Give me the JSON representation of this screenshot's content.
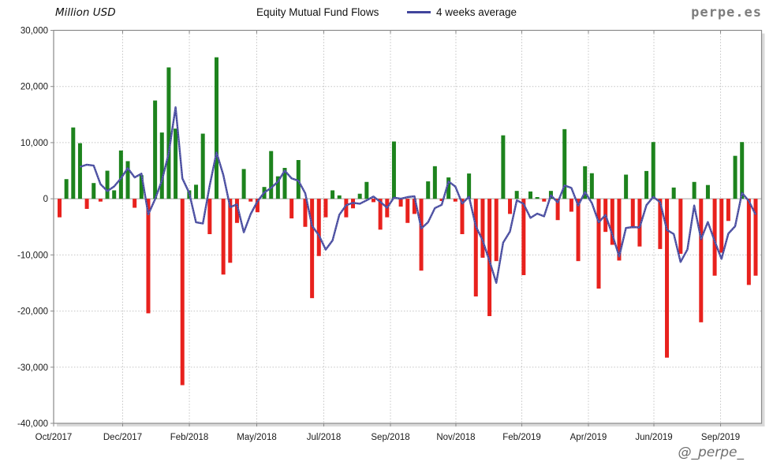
{
  "header": {
    "y_axis_unit": "Million USD",
    "title": "Equity Mutual Fund Flows",
    "legend_label": "4 weeks average",
    "brand_watermark": "perpe.es"
  },
  "footer": {
    "handle_watermark": "@_perpe_"
  },
  "colors": {
    "positive_bar": "#1d831d",
    "negative_bar": "#e8211d",
    "average_line": "#41459c",
    "grid": "#c4c4c4",
    "frame": "#8a8a8a",
    "zero_line": "#a0a0a0",
    "tick_text": "#1a1a1a",
    "watermark": "#7d7d7d"
  },
  "chart_data": {
    "type": "bar",
    "title": "Equity Mutual Fund Flows",
    "unit": "Million USD",
    "frequency": "weekly",
    "grid": true,
    "legend_position": "top",
    "ylim": [
      -40000,
      30000
    ],
    "y_tick_values": [
      30000,
      20000,
      10000,
      0,
      -10000,
      -20000,
      -30000,
      -40000
    ],
    "y_tick_labels": [
      "30,000",
      "20,000",
      "10,000",
      "0",
      "-10,000",
      "-20,000",
      "-30,000",
      "-40,000"
    ],
    "x_ticks": [
      {
        "label": "Oct/2017",
        "pos": 0.0
      },
      {
        "label": "Dec/2017",
        "pos": 0.0975
      },
      {
        "label": "Feb/2018",
        "pos": 0.1917
      },
      {
        "label": "May/2018",
        "pos": 0.2869
      },
      {
        "label": "Jul/2018",
        "pos": 0.3816
      },
      {
        "label": "Sep/2018",
        "pos": 0.4758
      },
      {
        "label": "Nov/2018",
        "pos": 0.5682
      },
      {
        "label": "Feb/2019",
        "pos": 0.6613
      },
      {
        "label": "Apr/2019",
        "pos": 0.7554
      },
      {
        "label": "Jun/2019",
        "pos": 0.8479
      },
      {
        "label": "Sep/2019",
        "pos": 0.9421
      }
    ],
    "series": [
      {
        "name": "Equity Mutual Fund Flows",
        "type": "bar",
        "values": [
          -3300,
          3500,
          12700,
          9900,
          -1800,
          2800,
          -500,
          5000,
          1500,
          8600,
          6700,
          -1600,
          4200,
          -20400,
          17500,
          11800,
          23400,
          12500,
          -33200,
          1500,
          2500,
          11600,
          -6300,
          25200,
          -13500,
          -11400,
          -4300,
          5300,
          -500,
          -2400,
          2100,
          8500,
          4000,
          5500,
          -3500,
          6900,
          -5000,
          -17700,
          -10200,
          -3300,
          1500,
          600,
          -3300,
          -1700,
          900,
          3000,
          -600,
          -5500,
          -3300,
          10200,
          -1400,
          -4300,
          -2700,
          -12800,
          3100,
          5800,
          -400,
          3800,
          -500,
          -6300,
          4500,
          -17400,
          -10500,
          -20900,
          -11100,
          11300,
          -2700,
          1400,
          -13600,
          1300,
          300,
          -500,
          1400,
          -3800,
          12400,
          -2300,
          -11100,
          5800,
          4550,
          -16000,
          -5900,
          -8200,
          -11000,
          4300,
          -5250,
          -8500,
          4950,
          10100,
          -8950,
          -28300,
          2000,
          -9800,
          0,
          3000,
          -22000,
          2450,
          -13700,
          -9600,
          -3950,
          7650,
          10100,
          -15350,
          -13700
        ]
      },
      {
        "name": "4 weeks average",
        "type": "line",
        "derived": "4-week trailing moving average of the weekly bar values"
      }
    ]
  }
}
